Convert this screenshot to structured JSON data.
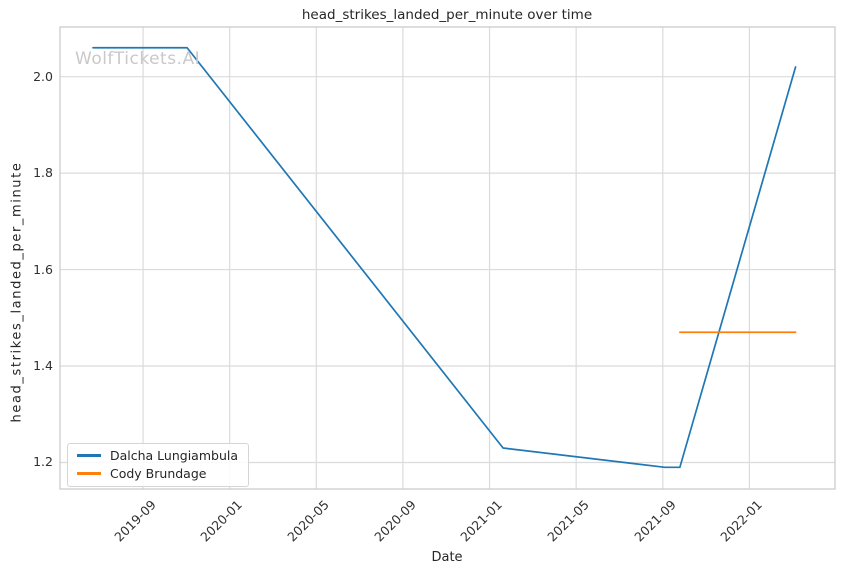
{
  "chart_data": {
    "type": "line",
    "title": "head_strikes_landed_per_minute over time",
    "xlabel": "Date",
    "ylabel": "head_strikes_landed_per_minute",
    "watermark": "WolfTickets.AI",
    "grid": true,
    "legend_position": "lower left",
    "colors": {
      "grid": "#dbdbdb",
      "spine": "#cccccc",
      "series_blue": "#1f77b4",
      "series_orange": "#ff7f0e"
    },
    "x_ticks": [
      {
        "date": "2019-09-01",
        "label": "2019-09"
      },
      {
        "date": "2020-01-01",
        "label": "2020-01"
      },
      {
        "date": "2020-05-01",
        "label": "2020-05"
      },
      {
        "date": "2020-09-01",
        "label": "2020-09"
      },
      {
        "date": "2021-01-01",
        "label": "2021-01"
      },
      {
        "date": "2021-05-01",
        "label": "2021-05"
      },
      {
        "date": "2021-09-01",
        "label": "2021-09"
      },
      {
        "date": "2022-01-01",
        "label": "2022-01"
      }
    ],
    "y_ticks": [
      {
        "value": 1.2,
        "label": "1.2"
      },
      {
        "value": 1.4,
        "label": "1.4"
      },
      {
        "value": 1.6,
        "label": "1.6"
      },
      {
        "value": 1.8,
        "label": "1.8"
      },
      {
        "value": 2.0,
        "label": "2.0"
      }
    ],
    "xlim_dates": [
      "2019-05-06",
      "2022-04-30"
    ],
    "ylim": [
      1.145,
      2.103
    ],
    "series": [
      {
        "name": "Dalcha Lungiambula",
        "color": "#1f77b4",
        "points": [
          {
            "date": "2019-06-22",
            "value": 2.06
          },
          {
            "date": "2019-11-02",
            "value": 2.06
          },
          {
            "date": "2021-01-20",
            "value": 1.23
          },
          {
            "date": "2021-09-04",
            "value": 1.19
          },
          {
            "date": "2021-09-25",
            "value": 1.19
          },
          {
            "date": "2022-03-05",
            "value": 2.02
          }
        ]
      },
      {
        "name": "Cody Brundage",
        "color": "#ff7f0e",
        "points": [
          {
            "date": "2021-09-25",
            "value": 1.47
          },
          {
            "date": "2022-03-05",
            "value": 1.47
          }
        ]
      }
    ]
  }
}
